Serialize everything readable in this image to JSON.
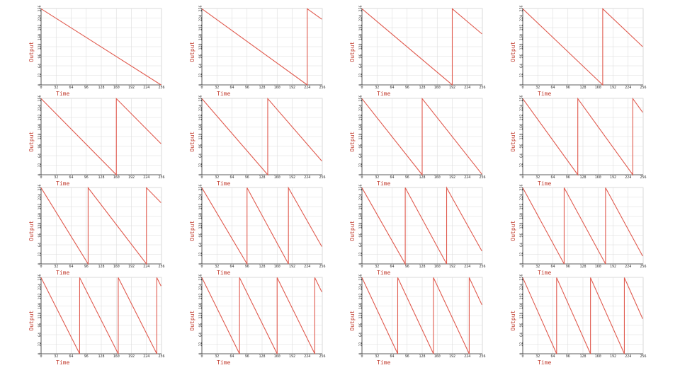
{
  "chart_data": [
    {
      "type": "line",
      "x_label": "Time",
      "y_label": "Output",
      "xlim": [
        0,
        256
      ],
      "ylim": [
        0,
        256
      ],
      "xticks": [
        0,
        32,
        64,
        96,
        128,
        160,
        192,
        224,
        256
      ],
      "yticks": [
        0,
        32,
        64,
        96,
        128,
        160,
        192,
        224,
        256
      ],
      "grid": true,
      "series": [
        {
          "color": "#e05a4e",
          "x": [
            0,
            255
          ],
          "values": [
            255,
            0
          ]
        }
      ]
    },
    {
      "type": "line",
      "x_label": "Time",
      "y_label": "Output",
      "xlim": [
        0,
        256
      ],
      "ylim": [
        0,
        256
      ],
      "xticks": [
        0,
        32,
        64,
        96,
        128,
        160,
        192,
        224,
        256
      ],
      "yticks": [
        0,
        32,
        64,
        96,
        128,
        160,
        192,
        224,
        256
      ],
      "grid": true,
      "series": [
        {
          "color": "#e05a4e",
          "x": [
            0,
            224,
            224,
            255
          ],
          "values": [
            255,
            0,
            255,
            220
          ]
        }
      ]
    },
    {
      "type": "line",
      "x_label": "Time",
      "y_label": "Output",
      "xlim": [
        0,
        256
      ],
      "ylim": [
        0,
        256
      ],
      "xticks": [
        0,
        32,
        64,
        96,
        128,
        160,
        192,
        224,
        256
      ],
      "yticks": [
        0,
        32,
        64,
        96,
        128,
        160,
        192,
        224,
        256
      ],
      "grid": true,
      "series": [
        {
          "color": "#e05a4e",
          "x": [
            0,
            192,
            192,
            255
          ],
          "values": [
            255,
            0,
            255,
            171
          ]
        }
      ]
    },
    {
      "type": "line",
      "x_label": "Time",
      "y_label": "Output",
      "xlim": [
        0,
        256
      ],
      "ylim": [
        0,
        256
      ],
      "xticks": [
        0,
        32,
        64,
        96,
        128,
        160,
        192,
        224,
        256
      ],
      "yticks": [
        0,
        32,
        64,
        96,
        128,
        160,
        192,
        224,
        256
      ],
      "grid": true,
      "series": [
        {
          "color": "#e05a4e",
          "x": [
            0,
            170,
            170,
            255
          ],
          "values": [
            255,
            0,
            255,
            128
          ]
        }
      ]
    },
    {
      "type": "line",
      "x_label": "Time",
      "y_label": "Output",
      "xlim": [
        0,
        256
      ],
      "ylim": [
        0,
        256
      ],
      "xticks": [
        0,
        32,
        64,
        96,
        128,
        160,
        192,
        224,
        256
      ],
      "yticks": [
        0,
        32,
        64,
        96,
        128,
        160,
        192,
        224,
        256
      ],
      "grid": true,
      "series": [
        {
          "color": "#e05a4e",
          "x": [
            0,
            160,
            160,
            255
          ],
          "values": [
            255,
            0,
            255,
            104
          ]
        }
      ]
    },
    {
      "type": "line",
      "x_label": "Time",
      "y_label": "Output",
      "xlim": [
        0,
        256
      ],
      "ylim": [
        0,
        256
      ],
      "xticks": [
        0,
        32,
        64,
        96,
        128,
        160,
        192,
        224,
        256
      ],
      "yticks": [
        0,
        32,
        64,
        96,
        128,
        160,
        192,
        224,
        256
      ],
      "grid": true,
      "series": [
        {
          "color": "#e05a4e",
          "x": [
            0,
            140,
            140,
            255
          ],
          "values": [
            255,
            0,
            255,
            46
          ]
        }
      ]
    },
    {
      "type": "line",
      "x_label": "Time",
      "y_label": "Output",
      "xlim": [
        0,
        256
      ],
      "ylim": [
        0,
        256
      ],
      "xticks": [
        0,
        32,
        64,
        96,
        128,
        160,
        192,
        224,
        256
      ],
      "yticks": [
        0,
        32,
        64,
        96,
        128,
        160,
        192,
        224,
        256
      ],
      "grid": true,
      "series": [
        {
          "color": "#e05a4e",
          "x": [
            0,
            128,
            128,
            255
          ],
          "values": [
            255,
            0,
            255,
            2
          ]
        }
      ]
    },
    {
      "type": "line",
      "x_label": "Time",
      "y_label": "Output",
      "xlim": [
        0,
        256
      ],
      "ylim": [
        0,
        256
      ],
      "xticks": [
        0,
        32,
        64,
        96,
        128,
        160,
        192,
        224,
        256
      ],
      "yticks": [
        0,
        32,
        64,
        96,
        128,
        160,
        192,
        224,
        256
      ],
      "grid": true,
      "series": [
        {
          "color": "#e05a4e",
          "x": [
            0,
            117,
            117,
            234,
            234,
            255
          ],
          "values": [
            255,
            0,
            255,
            0,
            255,
            209
          ]
        }
      ]
    },
    {
      "type": "line",
      "x_label": "Time",
      "y_label": "Output",
      "xlim": [
        0,
        256
      ],
      "ylim": [
        0,
        256
      ],
      "xticks": [
        0,
        32,
        64,
        96,
        128,
        160,
        192,
        224,
        256
      ],
      "yticks": [
        0,
        32,
        64,
        96,
        128,
        160,
        192,
        224,
        256
      ],
      "grid": true,
      "series": [
        {
          "color": "#e05a4e",
          "x": [
            0,
            100,
            100,
            224,
            224,
            255
          ],
          "values": [
            255,
            0,
            255,
            0,
            255,
            205
          ]
        }
      ]
    },
    {
      "type": "line",
      "x_label": "Time",
      "y_label": "Output",
      "xlim": [
        0,
        256
      ],
      "ylim": [
        0,
        256
      ],
      "xticks": [
        0,
        32,
        64,
        96,
        128,
        160,
        192,
        224,
        256
      ],
      "yticks": [
        0,
        32,
        64,
        96,
        128,
        160,
        192,
        224,
        256
      ],
      "grid": true,
      "series": [
        {
          "color": "#e05a4e",
          "x": [
            0,
            96,
            96,
            184,
            184,
            255
          ],
          "values": [
            255,
            0,
            255,
            0,
            255,
            58
          ]
        }
      ]
    },
    {
      "type": "line",
      "x_label": "Time",
      "y_label": "Output",
      "xlim": [
        0,
        256
      ],
      "ylim": [
        0,
        256
      ],
      "xticks": [
        0,
        32,
        64,
        96,
        128,
        160,
        192,
        224,
        256
      ],
      "yticks": [
        0,
        32,
        64,
        96,
        128,
        160,
        192,
        224,
        256
      ],
      "grid": true,
      "series": [
        {
          "color": "#e05a4e",
          "x": [
            0,
            92,
            92,
            180,
            180,
            255
          ],
          "values": [
            255,
            0,
            255,
            0,
            255,
            43
          ]
        }
      ]
    },
    {
      "type": "line",
      "x_label": "Time",
      "y_label": "Output",
      "xlim": [
        0,
        256
      ],
      "ylim": [
        0,
        256
      ],
      "xticks": [
        0,
        32,
        64,
        96,
        128,
        160,
        192,
        224,
        256
      ],
      "yticks": [
        0,
        32,
        64,
        96,
        128,
        160,
        192,
        224,
        256
      ],
      "grid": true,
      "series": [
        {
          "color": "#e05a4e",
          "x": [
            0,
            88,
            88,
            176,
            176,
            255
          ],
          "values": [
            255,
            0,
            255,
            0,
            255,
            26
          ]
        }
      ]
    },
    {
      "type": "line",
      "x_label": "Time",
      "y_label": "Output",
      "xlim": [
        0,
        256
      ],
      "ylim": [
        0,
        256
      ],
      "xticks": [
        0,
        32,
        64,
        96,
        128,
        160,
        192,
        224,
        256
      ],
      "yticks": [
        0,
        32,
        64,
        96,
        128,
        160,
        192,
        224,
        256
      ],
      "grid": true,
      "series": [
        {
          "color": "#e05a4e",
          "x": [
            0,
            82,
            82,
            164,
            164,
            246,
            246,
            255
          ],
          "values": [
            255,
            0,
            255,
            0,
            255,
            0,
            255,
            227
          ]
        }
      ]
    },
    {
      "type": "line",
      "x_label": "Time",
      "y_label": "Output",
      "xlim": [
        0,
        256
      ],
      "ylim": [
        0,
        256
      ],
      "xticks": [
        0,
        32,
        64,
        96,
        128,
        160,
        192,
        224,
        256
      ],
      "yticks": [
        0,
        32,
        64,
        96,
        128,
        160,
        192,
        224,
        256
      ],
      "grid": true,
      "series": [
        {
          "color": "#e05a4e",
          "x": [
            0,
            80,
            80,
            160,
            160,
            240,
            240,
            255
          ],
          "values": [
            255,
            0,
            255,
            0,
            255,
            0,
            255,
            207
          ]
        }
      ]
    },
    {
      "type": "line",
      "x_label": "Time",
      "y_label": "Output",
      "xlim": [
        0,
        256
      ],
      "ylim": [
        0,
        256
      ],
      "xticks": [
        0,
        32,
        64,
        96,
        128,
        160,
        192,
        224,
        256
      ],
      "yticks": [
        0,
        32,
        64,
        96,
        128,
        160,
        192,
        224,
        256
      ],
      "grid": true,
      "series": [
        {
          "color": "#e05a4e",
          "x": [
            0,
            76,
            76,
            152,
            152,
            228,
            228,
            255
          ],
          "values": [
            255,
            0,
            255,
            0,
            255,
            0,
            255,
            164
          ]
        }
      ]
    },
    {
      "type": "line",
      "x_label": "Time",
      "y_label": "Output",
      "xlim": [
        0,
        256
      ],
      "ylim": [
        0,
        256
      ],
      "xticks": [
        0,
        32,
        64,
        96,
        128,
        160,
        192,
        224,
        256
      ],
      "yticks": [
        0,
        32,
        64,
        96,
        128,
        160,
        192,
        224,
        256
      ],
      "grid": true,
      "series": [
        {
          "color": "#e05a4e",
          "x": [
            0,
            72,
            72,
            144,
            144,
            216,
            216,
            255
          ],
          "values": [
            255,
            0,
            255,
            0,
            255,
            0,
            255,
            117
          ]
        }
      ]
    }
  ]
}
